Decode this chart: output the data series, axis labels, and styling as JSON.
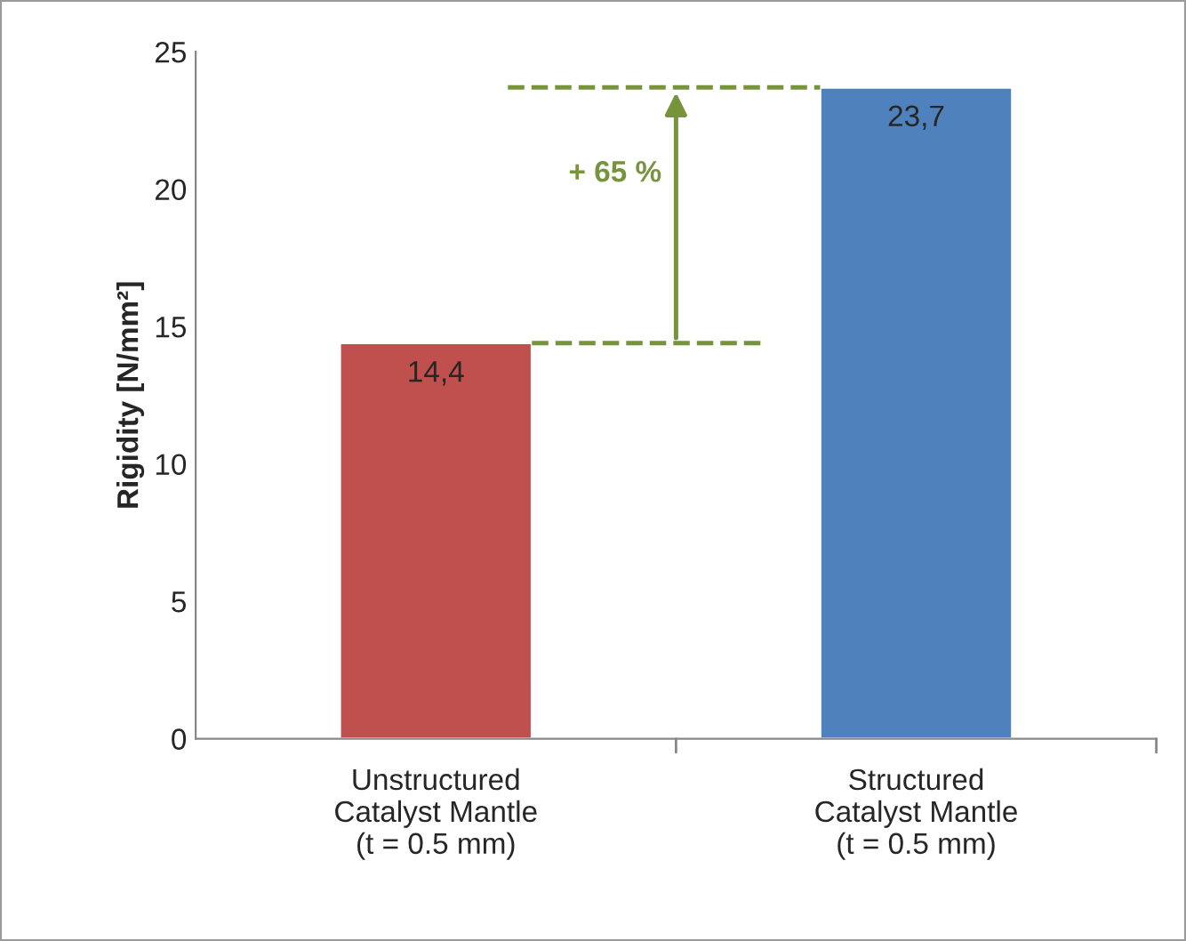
{
  "chart_data": {
    "type": "bar",
    "categories": [
      "Unstructured\nCatalyst Mantle\n(t = 0.5 mm)",
      "Structured\nCatalyst Mantle\n(t = 0.5 mm)"
    ],
    "values": [
      14.4,
      23.7
    ],
    "colors": [
      "#c0504d",
      "#4f81bd"
    ],
    "value_labels": [
      "14,4",
      "23,7"
    ],
    "ylabel": "Rigidity [N/mm²]",
    "ylim": [
      0,
      25
    ],
    "yticks": [
      0,
      5,
      10,
      15,
      20,
      25
    ],
    "annotations": [
      "+ 65 %"
    ],
    "grid": false,
    "legend": false
  }
}
